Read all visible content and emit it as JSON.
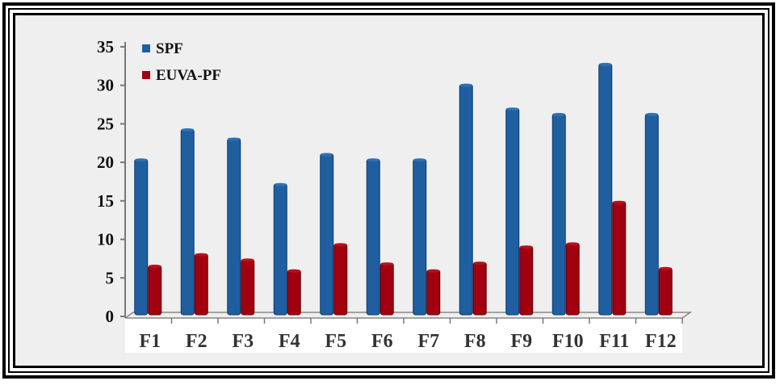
{
  "chart_data": {
    "type": "bar",
    "title": "",
    "xlabel": "",
    "ylabel": "",
    "categories": [
      "F1",
      "F2",
      "F3",
      "F4",
      "F5",
      "F6",
      "F7",
      "F8",
      "F9",
      "F10",
      "F11",
      "F12"
    ],
    "series": [
      {
        "name": "SPF",
        "color": "#1f5fa0",
        "values": [
          20.2,
          24.1,
          22.9,
          17.0,
          20.9,
          20.2,
          20.2,
          29.9,
          26.8,
          26.1,
          32.6,
          26.1
        ]
      },
      {
        "name": "EUVA-PF",
        "color": "#a0000f",
        "values": [
          6.4,
          7.9,
          7.2,
          5.8,
          9.2,
          6.7,
          5.8,
          6.8,
          8.9,
          9.3,
          14.7,
          6.1
        ]
      }
    ],
    "yticks": [
      "0",
      "5",
      "10",
      "15",
      "20",
      "25",
      "30",
      "35"
    ],
    "ylim": [
      0,
      35
    ],
    "grid": false,
    "legend": "top-left"
  }
}
